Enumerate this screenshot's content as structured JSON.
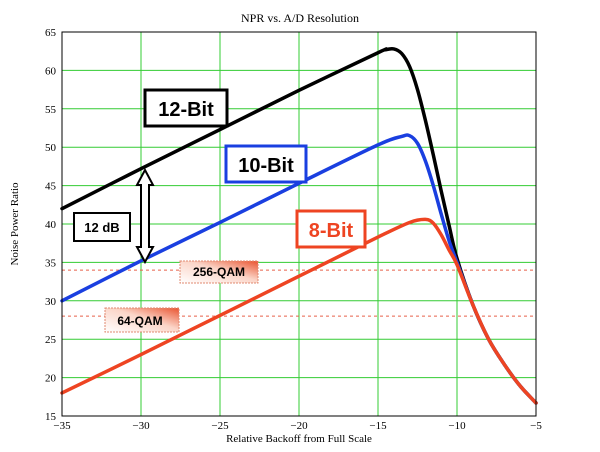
{
  "chart_data": {
    "type": "line",
    "title": "NPR vs. A/D Resolution",
    "xlabel": "Relative Backoff from Full Scale",
    "ylabel": "Noise Power Ratio",
    "xlim": [
      -35,
      -5
    ],
    "ylim": [
      15,
      65
    ],
    "xticks": [
      -35,
      -30,
      -25,
      -20,
      -15,
      -10,
      -5
    ],
    "yticks": [
      15,
      20,
      25,
      30,
      35,
      40,
      45,
      50,
      55,
      60,
      65
    ],
    "grid": true,
    "series": [
      {
        "name": "12-Bit",
        "color": "#000000",
        "x": [
          -35,
          -30,
          -25,
          -20,
          -15,
          -14.5,
          -14,
          -13.5,
          -13,
          -12.5,
          -12,
          -11.5,
          -11,
          -10.5,
          -10,
          -9,
          -8,
          -7,
          -6,
          -5
        ],
        "y": [
          42,
          47.2,
          52.3,
          57.4,
          62.3,
          62.7,
          62.8,
          62.2,
          60.5,
          57.5,
          53.5,
          49.0,
          44.3,
          39.8,
          35.5,
          29.5,
          25.0,
          21.7,
          18.9,
          16.7
        ]
      },
      {
        "name": "10-Bit",
        "color": "#1a3fe0",
        "x": [
          -35,
          -30,
          -25,
          -20,
          -15,
          -13.5,
          -13,
          -12.5,
          -12,
          -11.5,
          -11,
          -10.5,
          -10,
          -9,
          -8,
          -7,
          -6,
          -5
        ],
        "y": [
          30,
          35.2,
          40.2,
          45.3,
          50.3,
          51.4,
          51.5,
          50.5,
          48.2,
          45.0,
          41.3,
          37.8,
          35.0,
          29.5,
          25.0,
          21.7,
          18.9,
          16.7
        ]
      },
      {
        "name": "8-Bit",
        "color": "#ee4422",
        "x": [
          -35,
          -30,
          -25,
          -20,
          -15,
          -13,
          -12,
          -11.5,
          -11,
          -10.5,
          -10,
          -9,
          -8,
          -7,
          -6,
          -5
        ],
        "y": [
          18,
          23.0,
          28.1,
          33.2,
          38.3,
          40.2,
          40.6,
          40.1,
          38.6,
          36.6,
          34.7,
          29.5,
          25.0,
          21.7,
          18.9,
          16.7
        ]
      }
    ],
    "reference_lines": [
      {
        "label": "256-QAM",
        "y": 34,
        "color": "#e8604a"
      },
      {
        "label": "64-QAM",
        "y": 28,
        "color": "#e8604a"
      }
    ],
    "annotations": [
      {
        "text": "12 dB",
        "x": -30,
        "y_from": 35,
        "y_to": 47.2
      }
    ]
  }
}
